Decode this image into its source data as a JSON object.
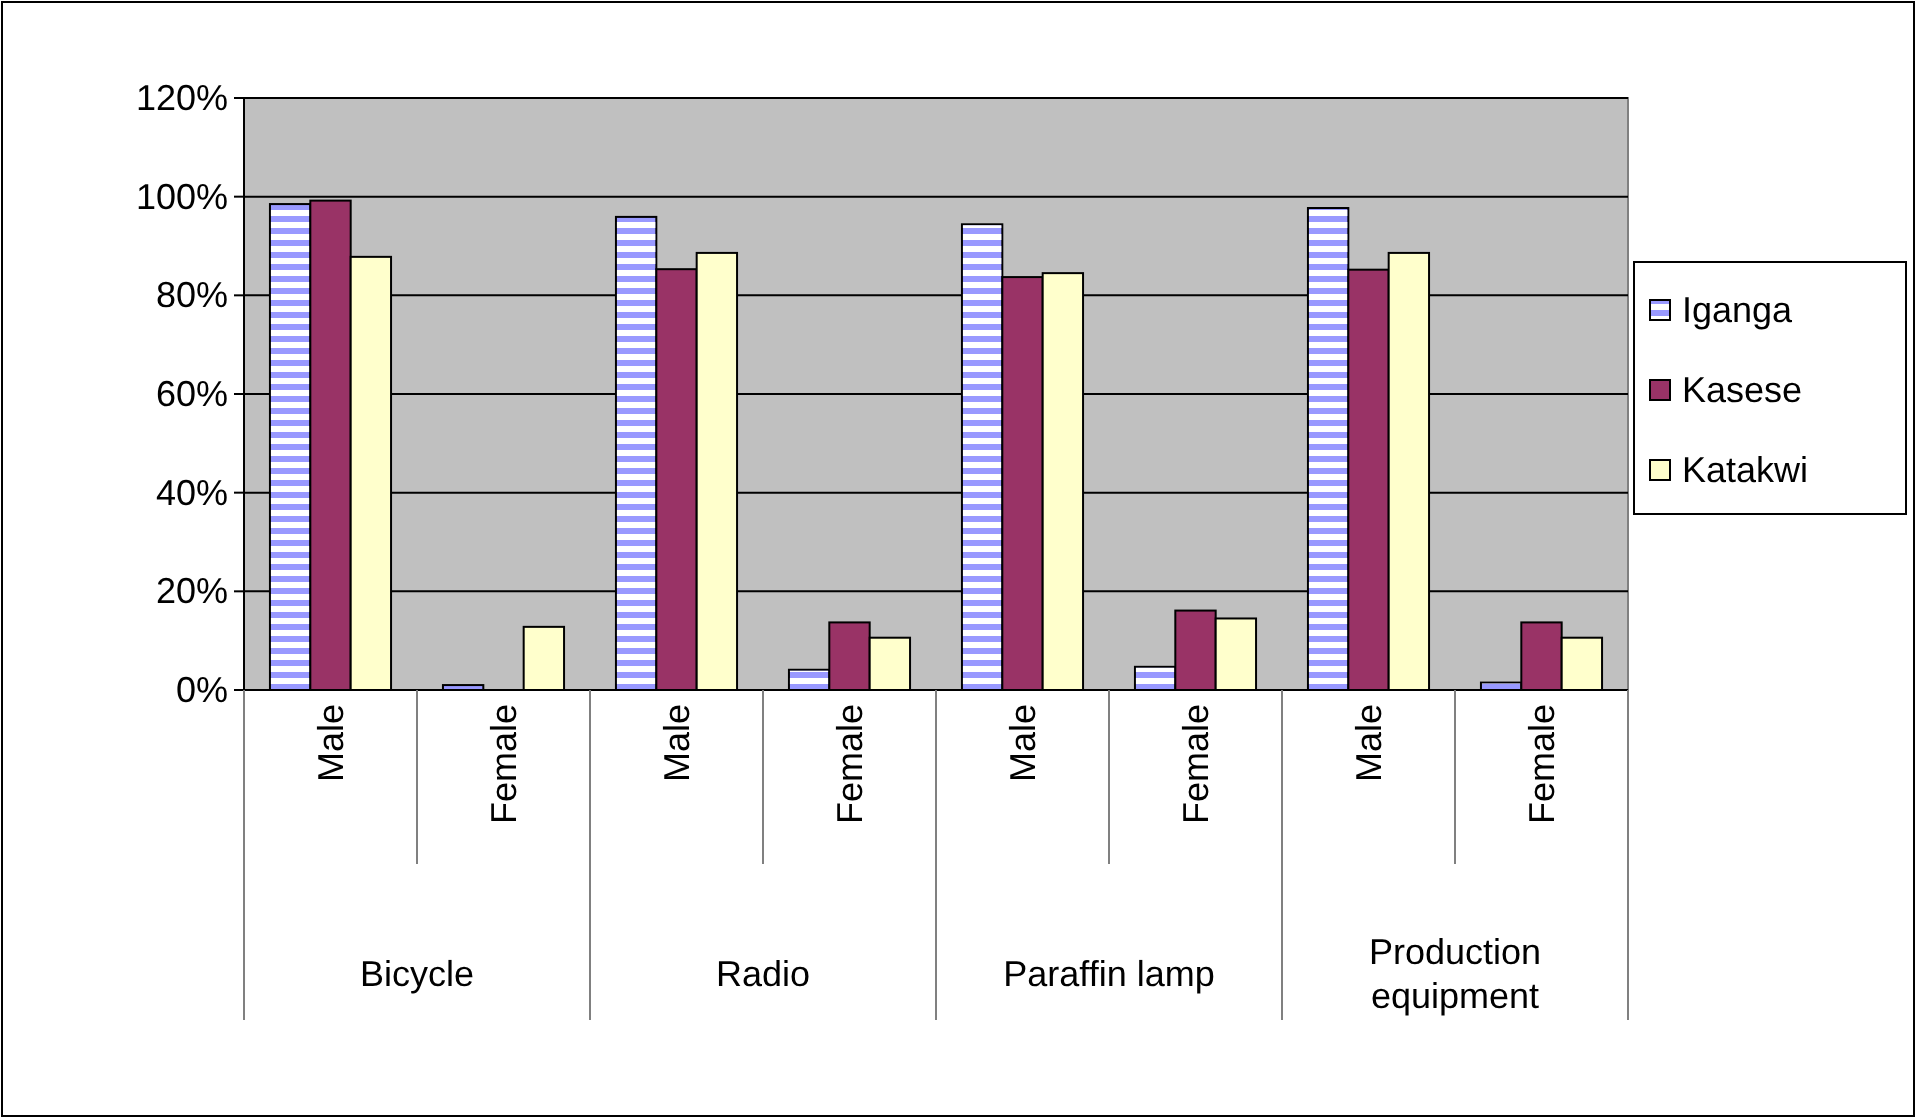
{
  "chart_data": {
    "type": "bar",
    "categories": [
      "Male",
      "Female",
      "Male",
      "Female",
      "Male",
      "Female",
      "Male",
      "Female"
    ],
    "annotations": [
      "Bicycle",
      "Radio",
      "Paraffin lamp",
      "Production equipment"
    ],
    "series": [
      {
        "name": "Iganga",
        "color": "#9999ff",
        "values": [
          98.5,
          1,
          95.9,
          4.1,
          94.4,
          4.7,
          97.7,
          1.5
        ]
      },
      {
        "name": "Kasese",
        "color": "#993366",
        "values": [
          99.2,
          0,
          85.3,
          13.7,
          83.7,
          16.1,
          85.2,
          13.7
        ]
      },
      {
        "name": "Katakwi",
        "color": "#ffffcc",
        "values": [
          87.8,
          12.8,
          88.6,
          10.6,
          84.5,
          14.5,
          88.6,
          10.6
        ]
      }
    ],
    "ylim": [
      0,
      120
    ],
    "yticks": [
      {
        "value": 0,
        "label": "0%"
      },
      {
        "value": 20,
        "label": "20%"
      },
      {
        "value": 40,
        "label": "40%"
      },
      {
        "value": 60,
        "label": "60%"
      },
      {
        "value": 80,
        "label": "80%"
      },
      {
        "value": 100,
        "label": "100%"
      },
      {
        "value": 120,
        "label": "120%"
      }
    ],
    "grid": "y",
    "legend": "right"
  }
}
